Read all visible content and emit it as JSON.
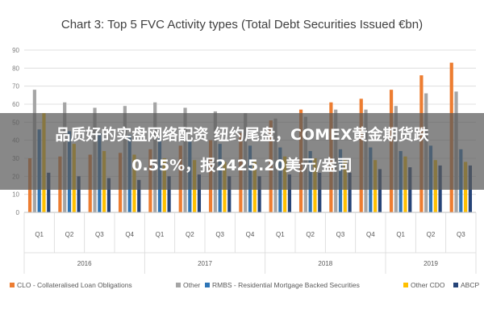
{
  "chart_data": {
    "type": "bar",
    "title": "Chart 3: Top 5 FVC Activity types (Total Debt Securities Issued €bn)",
    "categories": [
      "Q1",
      "Q2",
      "Q3",
      "Q4",
      "Q1",
      "Q2",
      "Q3",
      "Q4",
      "Q1",
      "Q2",
      "Q3",
      "Q4",
      "Q1",
      "Q2",
      "Q3"
    ],
    "years": [
      {
        "label": "2016",
        "span": [
          0,
          3
        ]
      },
      {
        "label": "2017",
        "span": [
          4,
          7
        ]
      },
      {
        "label": "2018",
        "span": [
          8,
          11
        ]
      },
      {
        "label": "2019",
        "span": [
          12,
          14
        ]
      }
    ],
    "ylim": [
      0,
      90
    ],
    "yticks": [
      0,
      10,
      20,
      30,
      40,
      50,
      60,
      70,
      80,
      90
    ],
    "grid": true,
    "legend_position": "bottom",
    "series": [
      {
        "name": "CLO - Collateralised Loan Obligations",
        "color": "#ed7d31",
        "values": [
          30,
          31,
          32,
          33,
          35,
          37,
          40,
          44,
          51,
          57,
          61,
          63,
          68,
          76,
          83
        ]
      },
      {
        "name": "Other",
        "color": "#a5a5a5",
        "values": [
          68,
          61,
          58,
          59,
          61,
          58,
          56,
          55,
          52,
          53,
          57,
          57,
          59,
          66,
          67
        ]
      },
      {
        "name": "RMBS - Residential Mortgage Backed Securities",
        "color": "#2e75b6",
        "values": [
          46,
          45,
          44,
          43,
          41,
          40,
          38,
          37,
          36,
          34,
          35,
          36,
          34,
          37,
          35
        ]
      },
      {
        "name": "Other CDO",
        "color": "#ffc000",
        "values": [
          55,
          38,
          34,
          32,
          30,
          29,
          28,
          28,
          31,
          30,
          29,
          29,
          31,
          29,
          28
        ]
      },
      {
        "name": "ABCP",
        "color": "#264478",
        "values": [
          22,
          20,
          19,
          18,
          20,
          21,
          20,
          20,
          21,
          22,
          22,
          24,
          25,
          26,
          26
        ]
      }
    ]
  },
  "overlay": {
    "line1": "品质好的实盘网络配资 纽约尾盘，COMEX黄金期货跌",
    "line2": "0.55%，报2425.20美元/盎司"
  }
}
